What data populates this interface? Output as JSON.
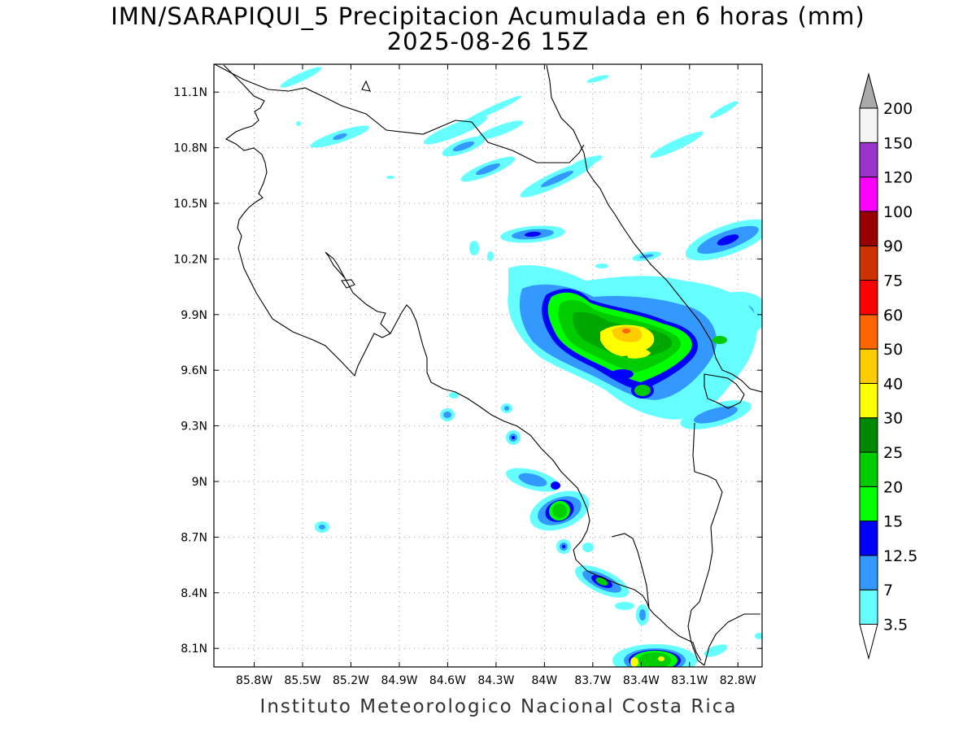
{
  "title": {
    "line1": "IMN/SARAPIQUI_5 Precipitacion Acumulada en 6 horas (mm)",
    "line2": "2025-08-26 15Z"
  },
  "footer": "Instituto Meteorologico Nacional Costa Rica",
  "map": {
    "lon_range": [
      -86.05,
      -82.65
    ],
    "lat_range": [
      8.0,
      11.25
    ],
    "lon_ticks": [
      {
        "value": -85.8,
        "label": "85.8W"
      },
      {
        "value": -85.5,
        "label": "85.5W"
      },
      {
        "value": -85.2,
        "label": "85.2W"
      },
      {
        "value": -84.9,
        "label": "84.9W"
      },
      {
        "value": -84.6,
        "label": "84.6W"
      },
      {
        "value": -84.3,
        "label": "84.3W"
      },
      {
        "value": -84.0,
        "label": "84W"
      },
      {
        "value": -83.7,
        "label": "83.7W"
      },
      {
        "value": -83.4,
        "label": "83.4W"
      },
      {
        "value": -83.1,
        "label": "83.1W"
      },
      {
        "value": -82.8,
        "label": "82.8W"
      }
    ],
    "lat_ticks": [
      {
        "value": 11.1,
        "label": "11.1N"
      },
      {
        "value": 10.8,
        "label": "10.8N"
      },
      {
        "value": 10.5,
        "label": "10.5N"
      },
      {
        "value": 10.2,
        "label": "10.2N"
      },
      {
        "value": 9.9,
        "label": "9.9N"
      },
      {
        "value": 9.6,
        "label": "9.6N"
      },
      {
        "value": 9.3,
        "label": "9.3N"
      },
      {
        "value": 9.0,
        "label": "9N"
      },
      {
        "value": 8.7,
        "label": "8.7N"
      },
      {
        "value": 8.4,
        "label": "8.4N"
      },
      {
        "value": 8.1,
        "label": "8.1N"
      }
    ],
    "grid": true
  },
  "colorbar": {
    "levels": [
      {
        "label": "3.5",
        "color": "#66ffff"
      },
      {
        "label": "7",
        "color": "#3399ff"
      },
      {
        "label": "12.5",
        "color": "#0000ff"
      },
      {
        "label": "15",
        "color": "#00ff00"
      },
      {
        "label": "20",
        "color": "#00cc00"
      },
      {
        "label": "25",
        "color": "#008800"
      },
      {
        "label": "30",
        "color": "#ffff00"
      },
      {
        "label": "40",
        "color": "#ffcc00"
      },
      {
        "label": "50",
        "color": "#ff6600"
      },
      {
        "label": "60",
        "color": "#ff0000"
      },
      {
        "label": "75",
        "color": "#cc3300"
      },
      {
        "label": "90",
        "color": "#990000"
      },
      {
        "label": "100",
        "color": "#ff00ff"
      },
      {
        "label": "120",
        "color": "#9933cc"
      },
      {
        "label": "150",
        "color": "#f5f5f5"
      },
      {
        "label": "200",
        "color": "#aaaaaa"
      }
    ]
  }
}
